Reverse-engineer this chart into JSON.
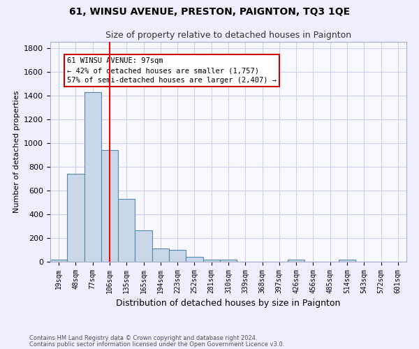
{
  "title1": "61, WINSU AVENUE, PRESTON, PAIGNTON, TQ3 1QE",
  "title2": "Size of property relative to detached houses in Paignton",
  "xlabel": "Distribution of detached houses by size in Paignton",
  "ylabel": "Number of detached properties",
  "footnote1": "Contains HM Land Registry data © Crown copyright and database right 2024.",
  "footnote2": "Contains public sector information licensed under the Open Government Licence v3.0.",
  "bin_labels": [
    "19sqm",
    "48sqm",
    "77sqm",
    "106sqm",
    "135sqm",
    "165sqm",
    "194sqm",
    "223sqm",
    "252sqm",
    "281sqm",
    "310sqm",
    "339sqm",
    "368sqm",
    "397sqm",
    "426sqm",
    "456sqm",
    "485sqm",
    "514sqm",
    "543sqm",
    "572sqm",
    "601sqm"
  ],
  "bar_values": [
    20,
    740,
    1430,
    940,
    530,
    265,
    110,
    100,
    40,
    20,
    15,
    0,
    0,
    0,
    15,
    0,
    0,
    15,
    0,
    0,
    0
  ],
  "bar_color": "#c8d8e8",
  "bar_edge_color": "#5588aa",
  "grid_color": "#d0d0ee",
  "background_color": "#eeeeff",
  "plot_bg_color": "#f8f8ff",
  "red_line_index": 3,
  "annotation_text": "61 WINSU AVENUE: 97sqm\n← 42% of detached houses are smaller (1,757)\n57% of semi-detached houses are larger (2,407) →",
  "annotation_box_color": "#ffffff",
  "annotation_box_edge": "#cc0000",
  "ylim": [
    0,
    1850
  ],
  "yticks": [
    0,
    200,
    400,
    600,
    800,
    1000,
    1200,
    1400,
    1600,
    1800
  ]
}
